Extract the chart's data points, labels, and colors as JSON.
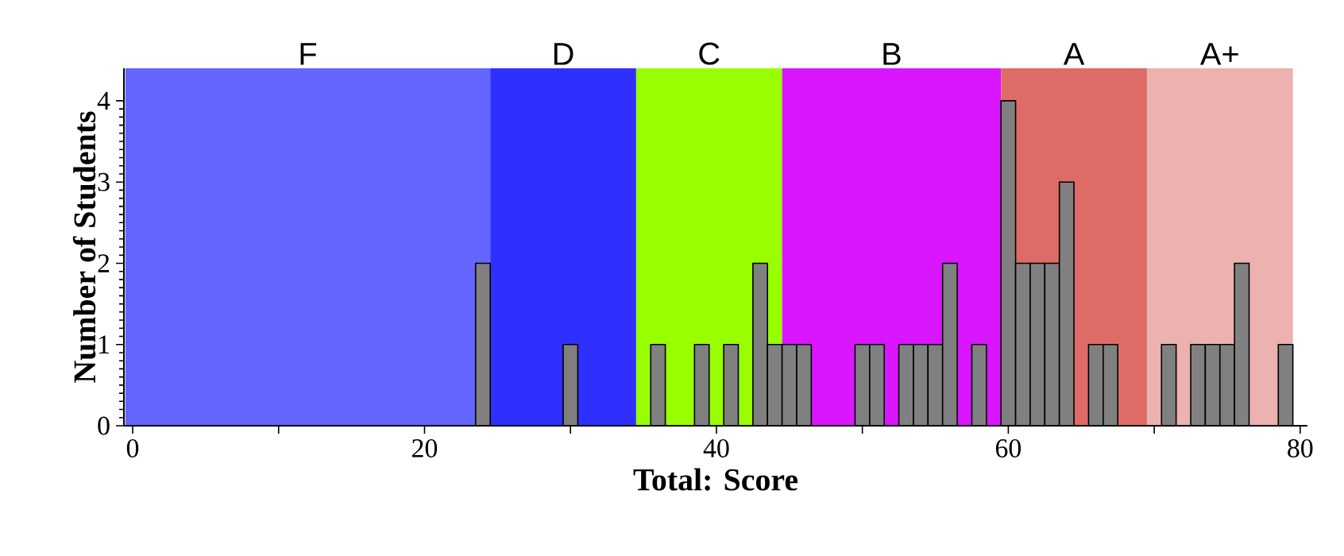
{
  "chart_data": {
    "type": "histogram",
    "xlabel": "Total: Score",
    "ylabel": "Number of Students",
    "bins": [
      23.5,
      24.5,
      25.5,
      26.5,
      27.5,
      28.5,
      29.5,
      30.5,
      31.5,
      32.5,
      33.5,
      34.5,
      35.5,
      36.5,
      37.5,
      38.5,
      39.5,
      40.5,
      41.5,
      42.5,
      43.5,
      44.5,
      45.5,
      46.5,
      47.5,
      48.5,
      49.5,
      50.5,
      51.5,
      52.5,
      53.5,
      54.5,
      55.5,
      56.5,
      57.5,
      58.5,
      59.5,
      60.5,
      61.5,
      62.5,
      63.5,
      64.5,
      65.5,
      66.5,
      67.5,
      68.5,
      69.5,
      70.5,
      71.5,
      72.5,
      73.5,
      74.5,
      75.5,
      76.5,
      77.5,
      78.5,
      79.5
    ],
    "values": [
      2,
      0,
      0,
      0,
      0,
      0,
      1,
      0,
      0,
      0,
      0,
      0,
      1,
      0,
      0,
      1,
      0,
      1,
      0,
      2,
      1,
      1,
      1,
      0,
      0,
      0,
      1,
      1,
      0,
      1,
      1,
      1,
      2,
      0,
      1,
      0,
      4,
      2,
      2,
      2,
      3,
      0,
      1,
      1,
      0,
      0,
      0,
      1,
      0,
      1,
      1,
      1,
      2,
      0,
      0,
      1
    ],
    "color": "#808080",
    "xlim": [
      -0.6,
      80.5
    ],
    "ylim": [
      0,
      4.4
    ],
    "xticks": [
      0,
      {
        "value": 10,
        "label": null
      },
      20,
      {
        "value": 30,
        "label": null
      },
      40,
      {
        "value": 50,
        "label": null
      },
      60,
      {
        "value": 70,
        "label": null
      },
      80
    ],
    "yticks": [
      0,
      1,
      2,
      3,
      4
    ],
    "bands": [
      {
        "axis": "x",
        "from": -0.5,
        "to": 24.5,
        "label": "F",
        "color": "#6464ff"
      },
      {
        "axis": "x",
        "from": 24.5,
        "to": 34.5,
        "label": "D",
        "color": "#2f2fff"
      },
      {
        "axis": "x",
        "from": 34.5,
        "to": 44.5,
        "label": "C",
        "color": "#99ff00"
      },
      {
        "axis": "x",
        "from": 44.5,
        "to": 59.5,
        "label": "B",
        "color": "#d916ff"
      },
      {
        "axis": "x",
        "from": 59.5,
        "to": 69.5,
        "label": "A",
        "color": "#df6b66"
      },
      {
        "axis": "x",
        "from": 69.5,
        "to": 79.5,
        "label": "A+",
        "color": "#ebb2b0"
      }
    ]
  }
}
